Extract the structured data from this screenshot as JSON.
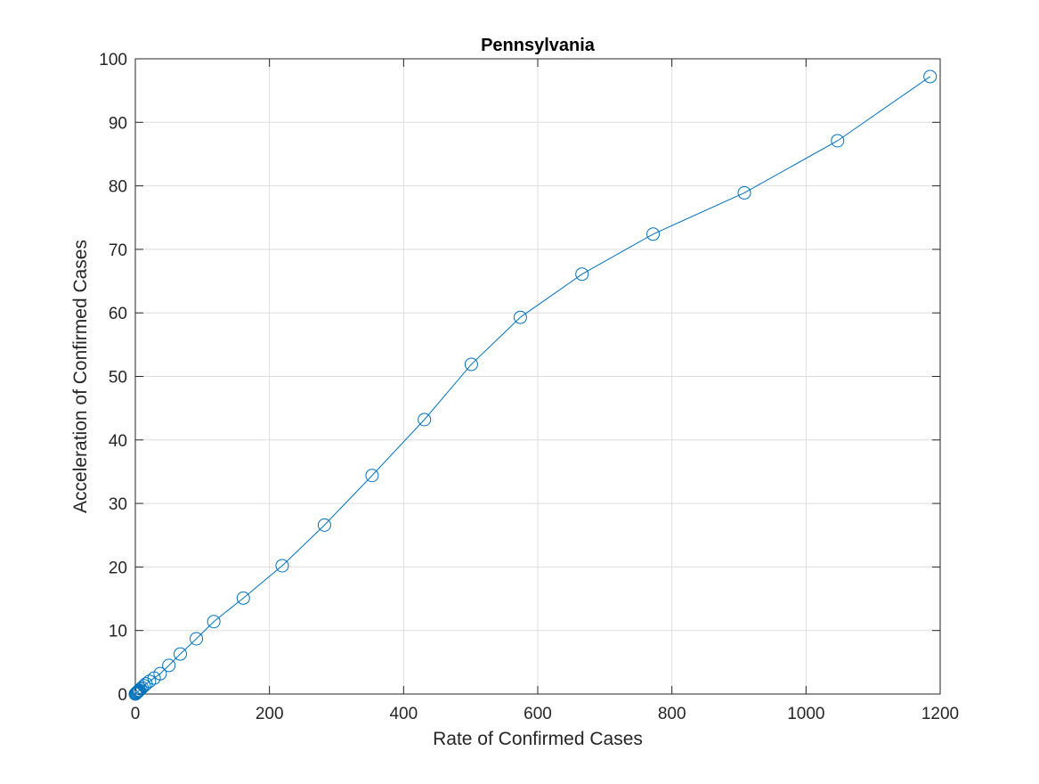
{
  "chart_data": {
    "type": "line",
    "title": "Pennsylvania",
    "xlabel": "Rate of Confirmed Cases",
    "ylabel": "Acceleration of Confirmed Cases",
    "xlim": [
      0,
      1200
    ],
    "ylim": [
      0,
      100
    ],
    "xticks": [
      0,
      200,
      400,
      600,
      800,
      1000,
      1200
    ],
    "yticks": [
      0,
      10,
      20,
      30,
      40,
      50,
      60,
      70,
      80,
      90,
      100
    ],
    "grid": true,
    "marker": "circle",
    "line_color": "#0072BD",
    "series": [
      {
        "x": [
          0,
          1,
          2,
          3,
          4,
          5,
          6,
          8,
          10,
          13,
          16,
          21,
          28,
          37,
          50,
          67,
          91,
          117,
          161,
          219,
          282,
          353,
          431,
          501,
          574,
          666,
          772,
          908,
          1047,
          1185
        ],
        "y": [
          0,
          0.1,
          0.2,
          0.3,
          0.4,
          0.5,
          0.6,
          0.8,
          1.0,
          1.3,
          1.6,
          2.0,
          2.5,
          3.2,
          4.5,
          6.3,
          8.7,
          11.4,
          15.1,
          20.2,
          26.6,
          34.4,
          43.2,
          51.9,
          59.3,
          66.1,
          72.4,
          78.9,
          87.1,
          97.2
        ]
      }
    ]
  }
}
